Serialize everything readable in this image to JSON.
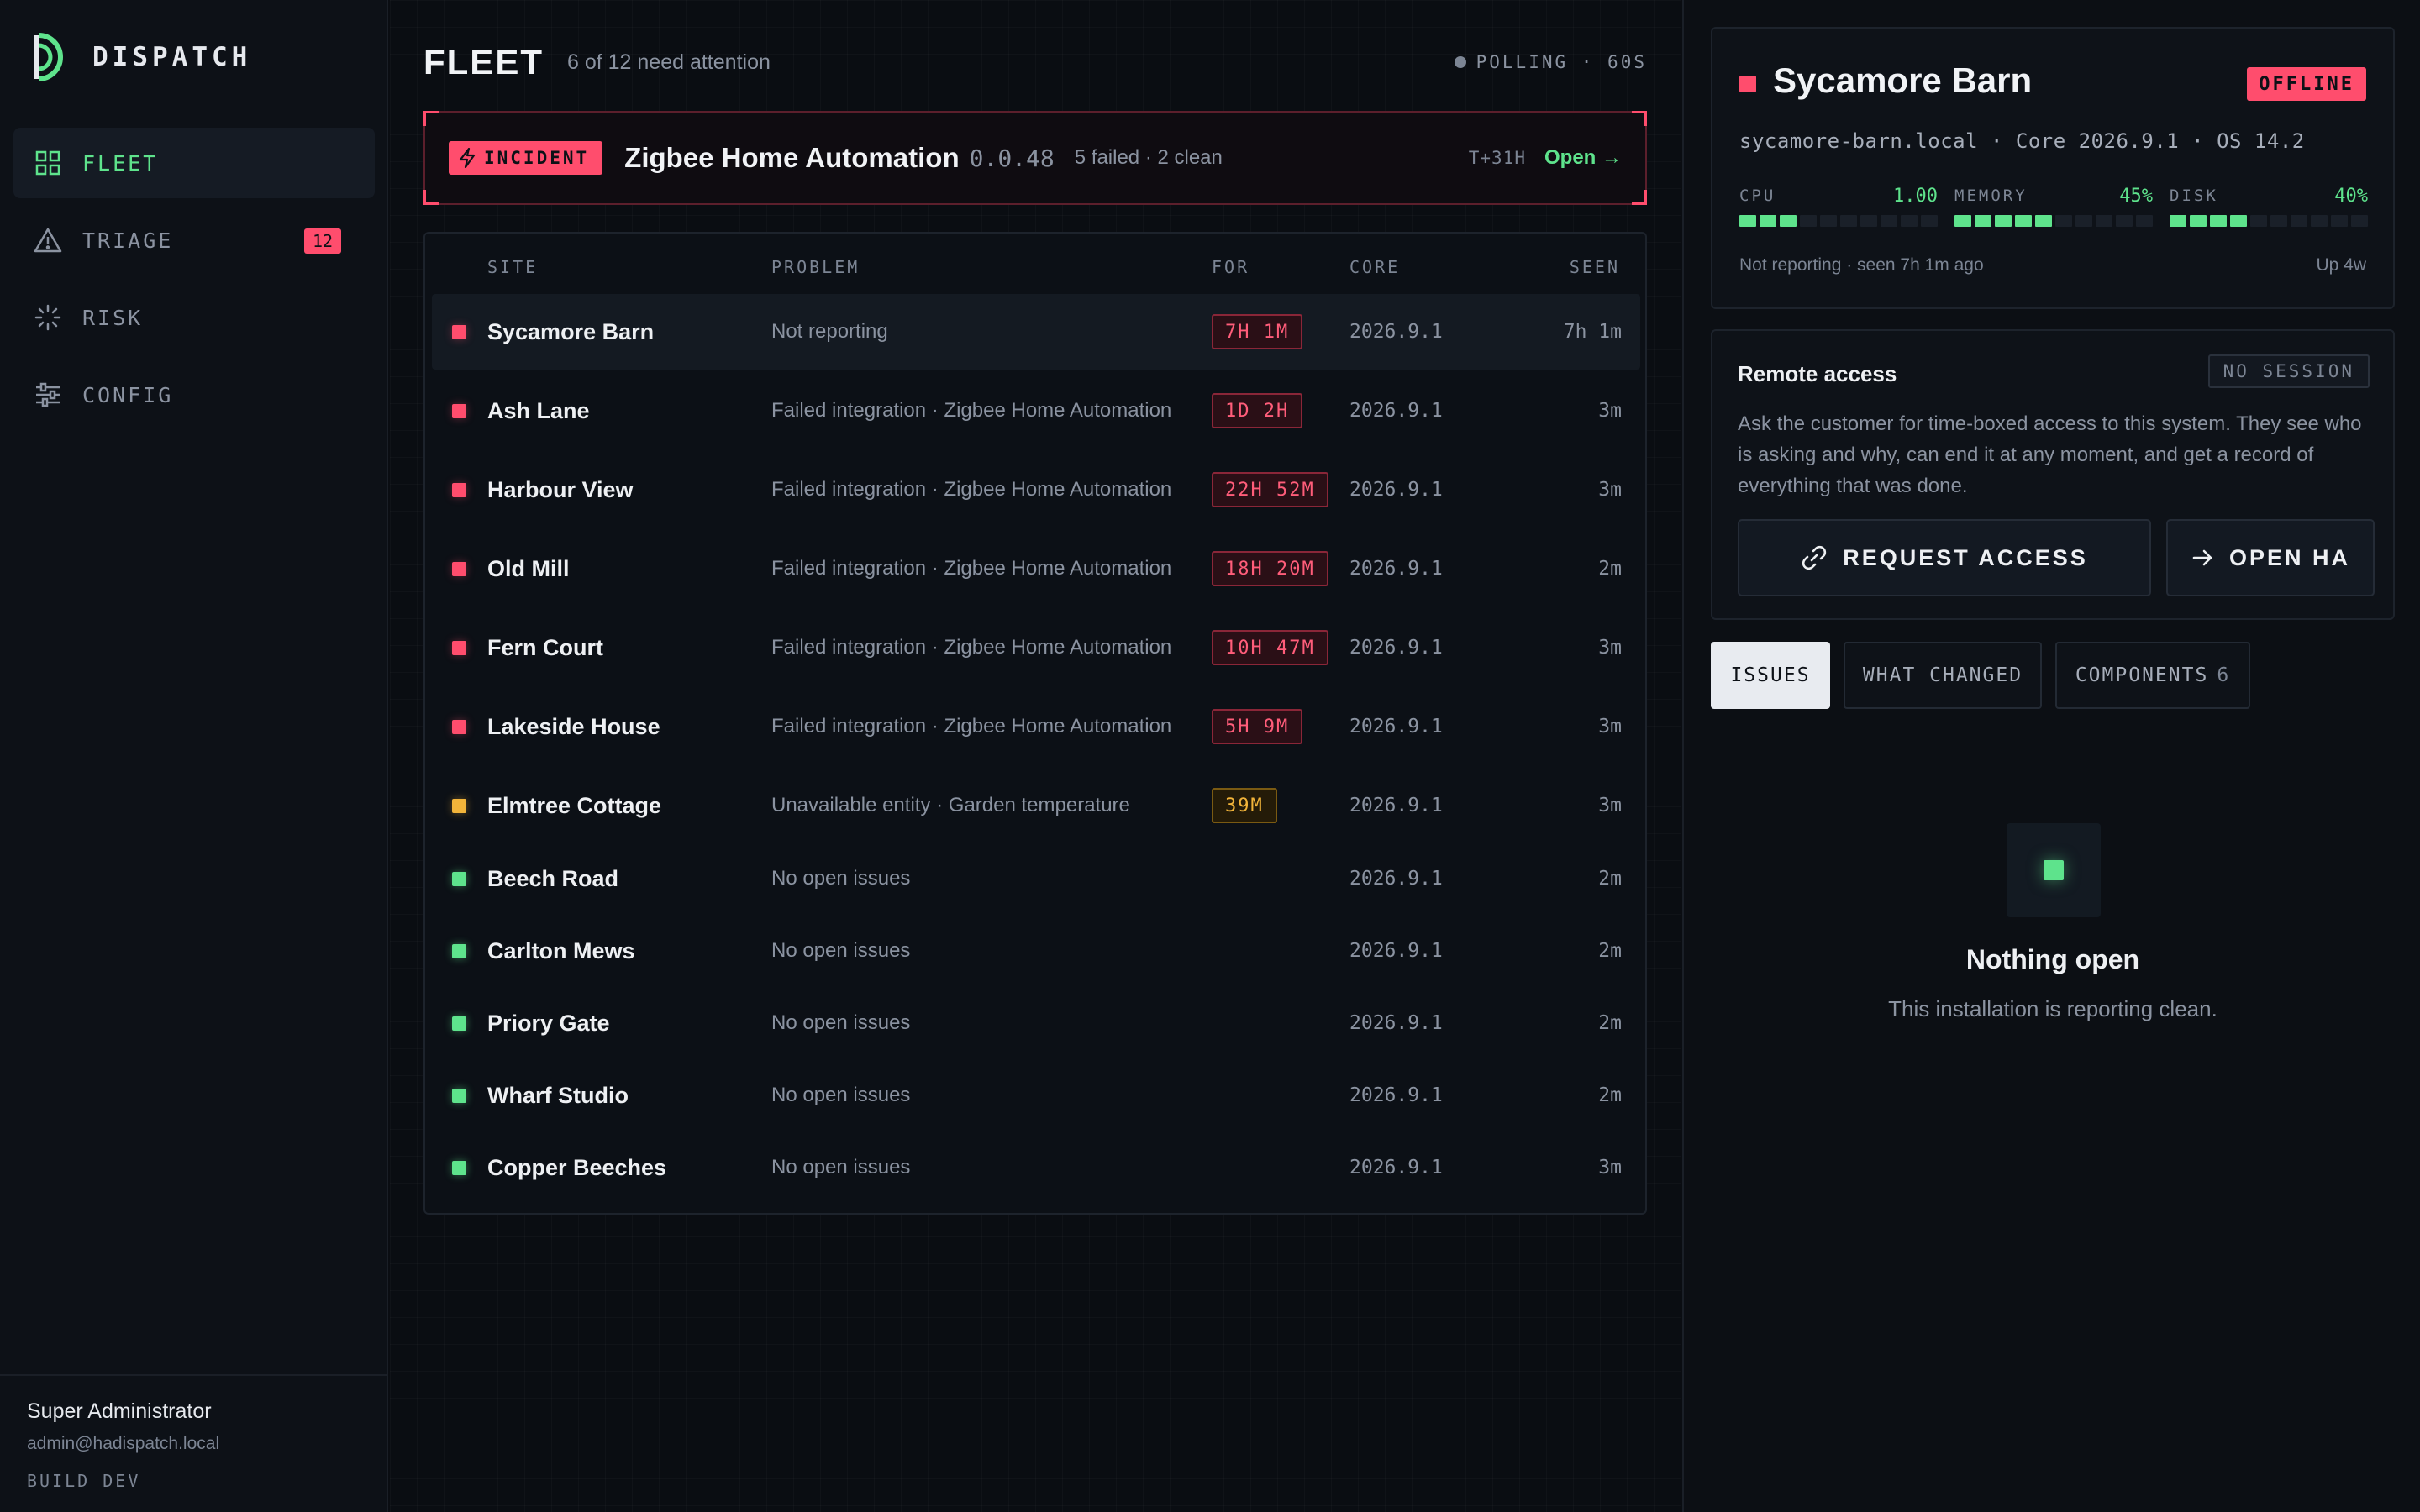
{
  "app": {
    "name": "DISPATCH"
  },
  "sidebar": {
    "items": [
      {
        "label": "FLEET",
        "icon": "grid-icon",
        "active": true
      },
      {
        "label": "TRIAGE",
        "icon": "warning-icon",
        "badge": "12"
      },
      {
        "label": "RISK",
        "icon": "loader-icon"
      },
      {
        "label": "CONFIG",
        "icon": "sliders-icon"
      }
    ],
    "user": {
      "name": "Super Administrator",
      "email": "admin@hadispatch.local"
    },
    "build": "BUILD DEV"
  },
  "main": {
    "title": "FLEET",
    "subtitle": "6 of 12 need attention",
    "polling": "POLLING · 60S",
    "incident": {
      "badge": "INCIDENT",
      "title": "Zigbee Home Automation",
      "version": "0.0.48",
      "meta": "5 failed · 2 clean",
      "time": "T+31H",
      "open": "Open →"
    },
    "table": {
      "headers": {
        "site": "SITE",
        "problem": "PROBLEM",
        "for": "FOR",
        "core": "CORE",
        "seen": "SEEN"
      },
      "rows": [
        {
          "status": "red",
          "site": "Sycamore Barn",
          "problem": "Not reporting",
          "for": "7H 1M",
          "for_tone": "red",
          "core": "2026.9.1",
          "seen": "7h 1m",
          "selected": true
        },
        {
          "status": "red",
          "site": "Ash Lane",
          "problem": "Failed integration · Zigbee Home Automation",
          "for": "1D 2H",
          "for_tone": "red",
          "core": "2026.9.1",
          "seen": "3m"
        },
        {
          "status": "red",
          "site": "Harbour View",
          "problem": "Failed integration · Zigbee Home Automation",
          "for": "22H 52M",
          "for_tone": "red",
          "core": "2026.9.1",
          "seen": "3m"
        },
        {
          "status": "red",
          "site": "Old Mill",
          "problem": "Failed integration · Zigbee Home Automation",
          "for": "18H 20M",
          "for_tone": "red",
          "core": "2026.9.1",
          "seen": "2m"
        },
        {
          "status": "red",
          "site": "Fern Court",
          "problem": "Failed integration · Zigbee Home Automation",
          "for": "10H 47M",
          "for_tone": "red",
          "core": "2026.9.1",
          "seen": "3m"
        },
        {
          "status": "red",
          "site": "Lakeside House",
          "problem": "Failed integration · Zigbee Home Automation",
          "for": "5H 9M",
          "for_tone": "red",
          "core": "2026.9.1",
          "seen": "3m"
        },
        {
          "status": "amber",
          "site": "Elmtree Cottage",
          "problem": "Unavailable entity · Garden temperature",
          "for": "39M",
          "for_tone": "amber",
          "core": "2026.9.1",
          "seen": "3m"
        },
        {
          "status": "green",
          "site": "Beech Road",
          "problem": "No open issues",
          "for": "",
          "core": "2026.9.1",
          "seen": "2m"
        },
        {
          "status": "green",
          "site": "Carlton Mews",
          "problem": "No open issues",
          "for": "",
          "core": "2026.9.1",
          "seen": "2m"
        },
        {
          "status": "green",
          "site": "Priory Gate",
          "problem": "No open issues",
          "for": "",
          "core": "2026.9.1",
          "seen": "2m"
        },
        {
          "status": "green",
          "site": "Wharf Studio",
          "problem": "No open issues",
          "for": "",
          "core": "2026.9.1",
          "seen": "2m"
        },
        {
          "status": "green",
          "site": "Copper Beeches",
          "problem": "No open issues",
          "for": "",
          "core": "2026.9.1",
          "seen": "3m"
        }
      ]
    }
  },
  "detail": {
    "site_name": "Sycamore Barn",
    "status": "OFFLINE",
    "meta": "sycamore-barn.local · Core 2026.9.1 · OS 14.2",
    "metrics": [
      {
        "label": "CPU",
        "value": "1.00",
        "fill": 0.25
      },
      {
        "label": "MEMORY",
        "value": "45%",
        "fill": 0.45
      },
      {
        "label": "DISK",
        "value": "40%",
        "fill": 0.4
      }
    ],
    "footer_left": "Not reporting · seen 7h 1m ago",
    "footer_right": "Up 4w",
    "remote": {
      "title": "Remote access",
      "session": "NO SESSION",
      "description": "Ask the customer for time-boxed access to this system. They see who is asking and why, can end it at any moment, and get a record of everything that was done.",
      "request_label": "REQUEST ACCESS",
      "open_label": "OPEN HA"
    },
    "tabs": [
      {
        "label": "ISSUES",
        "active": true
      },
      {
        "label": "WHAT CHANGED"
      },
      {
        "label": "COMPONENTS",
        "count": "6"
      }
    ],
    "empty": {
      "title": "Nothing open",
      "subtitle": "This installation is reporting clean."
    }
  },
  "colors": {
    "accent": "#5ee38c",
    "danger": "#ff4d6d",
    "warning": "#f2b43a"
  }
}
